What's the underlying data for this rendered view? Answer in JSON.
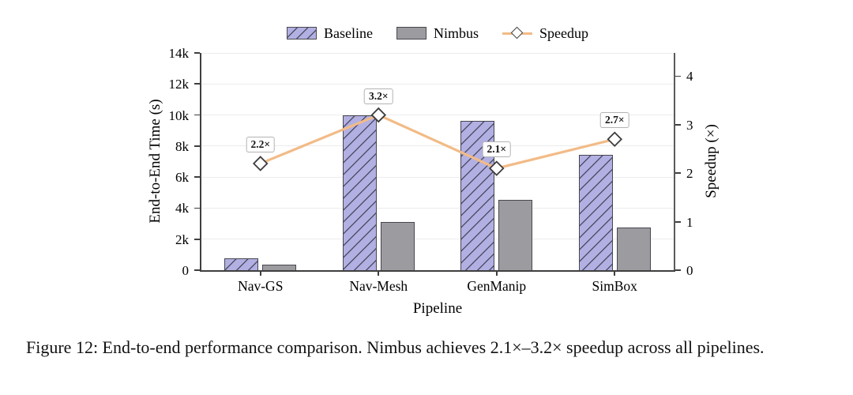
{
  "figure": {
    "caption": "Figure 12: End-to-end performance comparison. Nimbus achieves 2.1×–3.2× speedup across all pipelines."
  },
  "chart_data": {
    "type": "bar",
    "title": "",
    "categories": [
      "Nav-GS",
      "Nav-Mesh",
      "GenManip",
      "SimBox"
    ],
    "series": [
      {
        "name": "Baseline",
        "type": "bar",
        "axis": "left",
        "values": [
          750,
          10000,
          9600,
          7450
        ]
      },
      {
        "name": "Nimbus",
        "type": "bar",
        "axis": "left",
        "values": [
          340,
          3125,
          4550,
          2760
        ]
      },
      {
        "name": "Speedup",
        "type": "line",
        "axis": "right",
        "values": [
          2.2,
          3.2,
          2.1,
          2.7
        ],
        "point_labels": [
          "2.2×",
          "3.2×",
          "2.1×",
          "2.7×"
        ]
      }
    ],
    "xlabel": "Pipeline",
    "ylabel_left": "End-to-End Time (s)",
    "ylabel_right": "Speedup (×)",
    "y_left_ticks": [
      "0",
      "2k",
      "4k",
      "6k",
      "8k",
      "10k",
      "12k",
      "14k"
    ],
    "y_left_tick_values": [
      0,
      2000,
      4000,
      6000,
      8000,
      10000,
      12000,
      14000
    ],
    "y_left_max": 14000,
    "y_right_ticks": [
      "0",
      "1",
      "2",
      "3",
      "4"
    ],
    "y_right_tick_values": [
      0,
      1,
      2,
      3,
      4
    ],
    "y_right_max": 4.48,
    "grid": "horizontal",
    "legend_position": "top-center",
    "colors": {
      "baseline_fill": "#b2b0e2",
      "baseline_hatch": "#50506a",
      "nimbus_fill": "#9c9ca0",
      "bar_edge": "#47474f",
      "speedup_line": "#f2bb87",
      "marker_fill": "#ffffff",
      "marker_edge": "#3c3c3c",
      "gridline": "#ececec",
      "spine": "#3f3f3f"
    }
  }
}
